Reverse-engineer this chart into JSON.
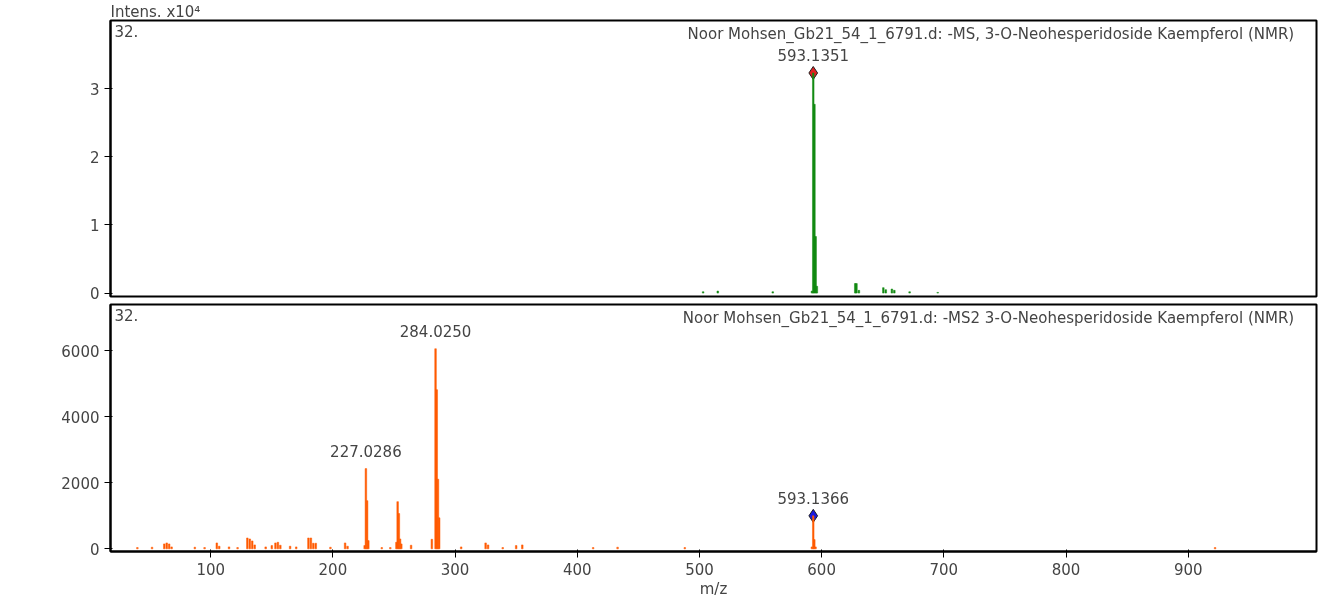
{
  "chart_data": [
    {
      "type": "bar",
      "title": "Noor Mohsen_Gb21_54_1_6791.d: -MS,    3-O-Neohesperidoside Kaempferol (NMR)",
      "ylabel": "Intens. x10⁴",
      "xlim": [
        18,
        1005
      ],
      "ylim": [
        -0.05,
        4.0
      ],
      "xticks": [
        100,
        200,
        300,
        400,
        500,
        600,
        700,
        800,
        900
      ],
      "yticks": [
        0,
        1,
        2,
        3
      ],
      "tick_labels": "y",
      "grid": false,
      "annotations": [
        "32.",
        {
          "text": "593.1351",
          "x": 593.1351,
          "y": 3.23
        }
      ],
      "series": [
        {
          "color": "#138a13",
          "x": [
            503,
            515,
            560,
            592.1,
            593.1351,
            594.1,
            595.1,
            596.1,
            627.5,
            628.5,
            630.5,
            650.5,
            652.5,
            657.5,
            659.5,
            672,
            695
          ],
          "values": [
            0.02,
            0.03,
            0.02,
            0.03,
            3.23,
            2.77,
            0.83,
            0.1,
            0.14,
            0.14,
            0.04,
            0.08,
            0.05,
            0.06,
            0.04,
            0.02,
            0.01
          ]
        },
        {
          "type": "scatter",
          "marker": "diamond",
          "color": "#e02020",
          "x": [
            593.1351
          ],
          "values": [
            3.23
          ]
        }
      ]
    },
    {
      "type": "bar",
      "title": "Noor Mohsen_Gb21_54_1_6791.d: -MS2    3-O-Neohesperidoside Kaempferol (NMR)",
      "xlabel": "m/z",
      "xlim": [
        18,
        1005
      ],
      "ylim": [
        -80,
        7400
      ],
      "xticks": [
        100,
        200,
        300,
        400,
        500,
        600,
        700,
        800,
        900
      ],
      "yticks": [
        0,
        2000,
        4000,
        6000
      ],
      "grid": false,
      "annotations": [
        "32.",
        {
          "text": "227.0286",
          "x": 227.0286,
          "y": 2430
        },
        {
          "text": "284.0250",
          "x": 284.025,
          "y": 6060
        },
        {
          "text": "593.1366",
          "x": 593.1366,
          "y": 1000
        }
      ],
      "series": [
        {
          "color": "#ff5a00",
          "x": [
            40,
            52,
            62,
            64,
            66,
            68,
            87,
            95,
            105,
            107,
            115,
            122,
            130,
            132,
            134,
            136,
            145,
            150,
            153,
            155,
            157,
            165,
            170,
            180,
            182,
            184,
            186,
            198,
            210,
            212,
            226,
            227.0286,
            228,
            229,
            240,
            247,
            252,
            253,
            254,
            255,
            256,
            264,
            281,
            284.025,
            285,
            286,
            287,
            305,
            325,
            327,
            339,
            350,
            355,
            413,
            433,
            488,
            592,
            593.1366,
            594,
            595,
            922
          ],
          "values": [
            40,
            50,
            150,
            180,
            150,
            60,
            50,
            40,
            180,
            80,
            60,
            40,
            330,
            300,
            240,
            120,
            60,
            100,
            180,
            200,
            110,
            80,
            60,
            330,
            330,
            170,
            170,
            50,
            180,
            80,
            100,
            2430,
            1460,
            250,
            40,
            40,
            200,
            1430,
            1070,
            300,
            150,
            110,
            290,
            6060,
            4820,
            2110,
            940,
            60,
            180,
            120,
            40,
            100,
            120,
            40,
            50,
            40,
            60,
            1000,
            280,
            60,
            40
          ]
        },
        {
          "type": "scatter",
          "marker": "diamond",
          "color": "#1a1adf",
          "x": [
            593.1366
          ],
          "values": [
            1000
          ]
        }
      ]
    }
  ]
}
